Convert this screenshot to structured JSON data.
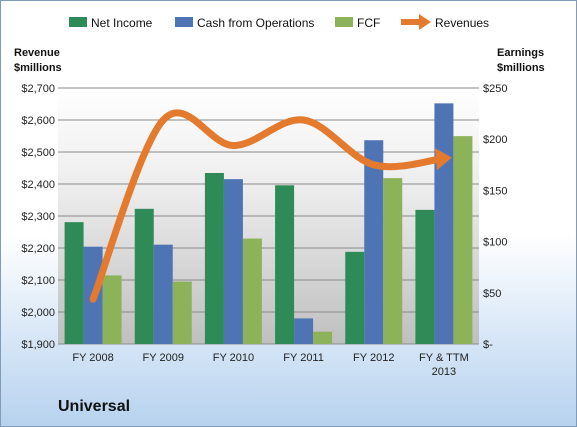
{
  "company": "Universal",
  "chart_data": {
    "type": "bar",
    "categories": [
      "FY 2008",
      "FY 2009",
      "FY 2010",
      "FY 2011",
      "FY 2012",
      "FY & TTM 2013"
    ],
    "left_axis": {
      "title_line1": "Revenue",
      "title_line2": "$millions",
      "range": [
        1900,
        2700
      ],
      "ticks": [
        "$1,900",
        "$2,000",
        "$2,100",
        "$2,200",
        "$2,300",
        "$2,400",
        "$2,500",
        "$2,600",
        "$2,700"
      ]
    },
    "right_axis": {
      "title_line1": "Earnings",
      "title_line2": "$millions",
      "range": [
        0,
        250
      ],
      "ticks": [
        "$-",
        "$50",
        "$100",
        "$150",
        "$200",
        "$250"
      ]
    },
    "series": [
      {
        "name": "Net Income",
        "kind": "bar",
        "axis": "right",
        "color": "#2e8b57",
        "values": [
          119,
          132,
          167,
          155,
          90,
          131
        ]
      },
      {
        "name": "Cash from Operations",
        "kind": "bar",
        "axis": "right",
        "color": "#4f74b3",
        "values": [
          95,
          97,
          161,
          25,
          199,
          235
        ]
      },
      {
        "name": "FCF",
        "kind": "bar",
        "axis": "right",
        "color": "#8db35a",
        "values": [
          67,
          61,
          103,
          12,
          162,
          203
        ]
      },
      {
        "name": "Revenues",
        "kind": "line",
        "axis": "left",
        "color": "#e47a2e",
        "values": [
          2040,
          2600,
          2520,
          2600,
          2460,
          2480
        ]
      }
    ],
    "grid": true,
    "legend": "top"
  }
}
